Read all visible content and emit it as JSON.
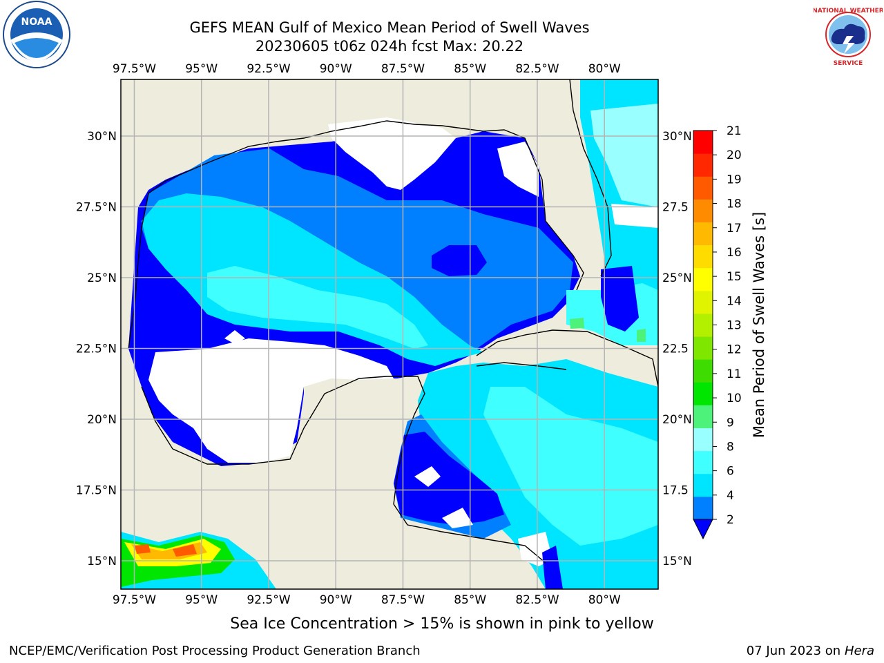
{
  "header": {
    "title_line1": "GEFS MEAN Gulf of Mexico Mean Period of Swell Waves",
    "title_line2": "20230605 t06z 024h fcst   Max: 20.22"
  },
  "logos": {
    "noaa_text": "NOAA",
    "nws_text": "NATIONAL WEATHER SERVICE"
  },
  "chart_data": {
    "type": "heatmap",
    "title": "GEFS MEAN Gulf of Mexico Mean Period of Swell Waves",
    "subtitle": "20230605 t06z 024h fcst   Max: 20.22",
    "max_value": 20.22,
    "lon_ticks": [
      "97.5°W",
      "95°W",
      "92.5°W",
      "90°W",
      "87.5°W",
      "85°W",
      "82.5°W",
      "80°W"
    ],
    "lon_values": [
      -97.5,
      -95,
      -92.5,
      -90,
      -87.5,
      -85,
      -82.5,
      -80
    ],
    "lat_ticks_left": [
      "30°N",
      "27.5°N",
      "25°N",
      "22.5°N",
      "20°N",
      "17.5°N",
      "15°N"
    ],
    "lat_ticks_right": [
      "30°N",
      "27.5",
      "25°N",
      "22.5",
      "20°N",
      "17.5",
      "15°N"
    ],
    "lat_values": [
      30,
      27.5,
      25,
      22.5,
      20,
      17.5,
      15
    ],
    "xlim": [
      -98,
      -78
    ],
    "ylim": [
      14,
      32
    ],
    "grid": true,
    "colorbar": {
      "label": "Mean Period of Swell Waves [s]",
      "ticks": [
        "21",
        "20",
        "19",
        "18",
        "17",
        "16",
        "15",
        "14",
        "13",
        "12",
        "11",
        "10",
        "9",
        "8",
        "6",
        "4",
        "2"
      ],
      "levels": [
        2,
        4,
        6,
        8,
        9,
        10,
        11,
        12,
        13,
        14,
        15,
        16,
        17,
        18,
        19,
        20,
        21
      ],
      "colors": [
        "#0080ff",
        "#00e5ff",
        "#40ffff",
        "#99ffff",
        "#4cf27a",
        "#00e600",
        "#3fdc00",
        "#7fe600",
        "#b2f000",
        "#e0f400",
        "#ffff00",
        "#ffdc00",
        "#ffb900",
        "#ff8c00",
        "#ff5a00",
        "#ff2800",
        "#ff0000"
      ],
      "under_color": "#0000ff"
    },
    "colors": {
      "land": "#eeecdc",
      "no_data": "#ffffff",
      "grid": "#b4b4b4"
    }
  },
  "footer": {
    "note": "Sea Ice Concentration > 15% is shown in pink to yellow",
    "left": "NCEP/EMC/Verification Post Processing Product Generation Branch",
    "right_date": "07 Jun 2023 on",
    "right_host": "Hera"
  }
}
